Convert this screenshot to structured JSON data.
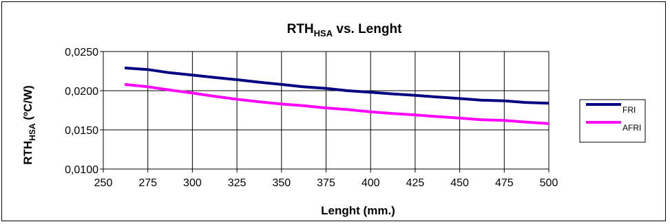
{
  "chart_data": {
    "type": "line",
    "title_main": "RTH",
    "title_sub": "HSA",
    "title_rest": " vs. Lenght",
    "xlabel": "Lenght (mm.)",
    "ylabel_main": "RTH",
    "ylabel_sub": "HSA",
    "ylabel_rest": " (ºC/W)",
    "xlim": [
      250,
      500
    ],
    "ylim": [
      0.01,
      0.025
    ],
    "xticks": [
      250,
      275,
      300,
      325,
      350,
      375,
      400,
      425,
      450,
      475,
      500
    ],
    "xtick_labels": [
      "250",
      "275",
      "300",
      "325",
      "350",
      "375",
      "400",
      "425",
      "450",
      "475",
      "500"
    ],
    "yticks": [
      0.01,
      0.015,
      0.02,
      0.025
    ],
    "ytick_labels": [
      "0,0100",
      "0,0150",
      "0,0200",
      "0,0250"
    ],
    "grid": true,
    "legend_position": "right",
    "series": [
      {
        "name": "FRI",
        "color": "#000080",
        "x": [
          262,
          275,
          287,
          300,
          312,
          325,
          337,
          350,
          362,
          375,
          387,
          400,
          412,
          425,
          437,
          450,
          462,
          475,
          487,
          500
        ],
        "y": [
          0.0229,
          0.0227,
          0.0223,
          0.022,
          0.0217,
          0.0214,
          0.0211,
          0.0208,
          0.0205,
          0.0203,
          0.02,
          0.0198,
          0.0196,
          0.0194,
          0.0192,
          0.019,
          0.0188,
          0.0187,
          0.0185,
          0.0184
        ]
      },
      {
        "name": "AFRI",
        "color": "#ff00ff",
        "x": [
          262,
          275,
          287,
          300,
          312,
          325,
          337,
          350,
          362,
          375,
          387,
          400,
          412,
          425,
          437,
          450,
          462,
          475,
          487,
          500
        ],
        "y": [
          0.0208,
          0.0205,
          0.0201,
          0.0197,
          0.0193,
          0.0189,
          0.0186,
          0.0183,
          0.0181,
          0.0178,
          0.0176,
          0.0173,
          0.0171,
          0.0169,
          0.0167,
          0.0165,
          0.0163,
          0.0162,
          0.016,
          0.0158
        ]
      }
    ]
  }
}
